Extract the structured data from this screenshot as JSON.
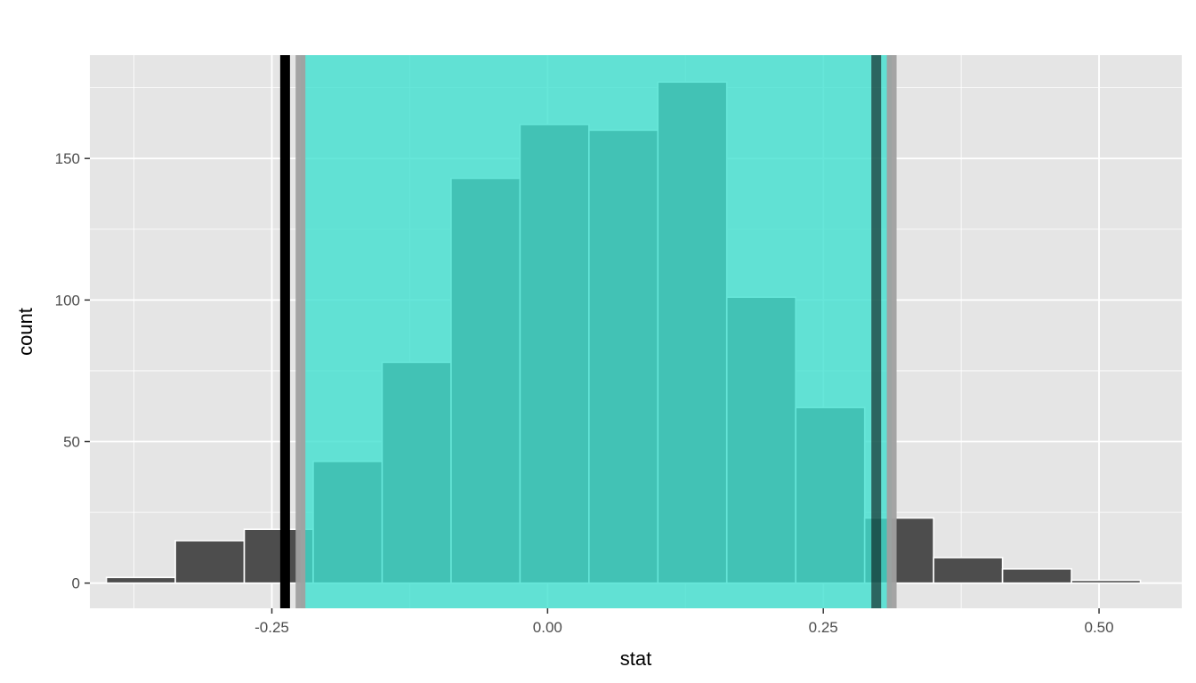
{
  "chart_data": {
    "type": "bar",
    "title": "",
    "xlabel": "stat",
    "ylabel": "count",
    "xlim": [
      -0.415,
      0.575
    ],
    "ylim": [
      -8.9,
      186.5
    ],
    "x_ticks": [
      -0.25,
      0.0,
      0.25,
      0.5
    ],
    "x_tick_labels": [
      "-0.25",
      "0.00",
      "0.25",
      "0.50"
    ],
    "y_ticks": [
      0,
      50,
      100,
      150
    ],
    "y_tick_labels": [
      "0",
      "50",
      "100",
      "150"
    ],
    "grid": true,
    "bins": [
      {
        "x0": -0.4,
        "x1": -0.3375,
        "count": 2
      },
      {
        "x0": -0.3375,
        "x1": -0.275,
        "count": 15
      },
      {
        "x0": -0.275,
        "x1": -0.2125,
        "count": 19
      },
      {
        "x0": -0.2125,
        "x1": -0.15,
        "count": 43
      },
      {
        "x0": -0.15,
        "x1": -0.0875,
        "count": 78
      },
      {
        "x0": -0.0875,
        "x1": -0.025,
        "count": 143
      },
      {
        "x0": -0.025,
        "x1": 0.0375,
        "count": 162
      },
      {
        "x0": 0.0375,
        "x1": 0.1,
        "count": 160
      },
      {
        "x0": 0.1,
        "x1": 0.1625,
        "count": 177
      },
      {
        "x0": 0.1625,
        "x1": 0.225,
        "count": 101
      },
      {
        "x0": 0.225,
        "x1": 0.2875,
        "count": 62
      },
      {
        "x0": 0.2875,
        "x1": 0.35,
        "count": 23
      },
      {
        "x0": 0.35,
        "x1": 0.4125,
        "count": 9
      },
      {
        "x0": 0.4125,
        "x1": 0.475,
        "count": 5
      },
      {
        "x0": 0.475,
        "x1": 0.5375,
        "count": 1
      }
    ],
    "shaded_interval": {
      "from": -0.224,
      "to": 0.312,
      "color": "#40e0d0"
    },
    "reference_lines": [
      {
        "x": -0.238,
        "color": "#000000"
      },
      {
        "x": -0.224,
        "color": "#a0a0a0"
      },
      {
        "x": 0.298,
        "color": "#000000"
      },
      {
        "x": 0.312,
        "color": "#a0a0a0"
      }
    ],
    "colors": {
      "panel": "#e5e5e5",
      "grid": "#ffffff",
      "bar_fill": "#4d4d4d",
      "bar_outline": "#ffffff"
    }
  }
}
